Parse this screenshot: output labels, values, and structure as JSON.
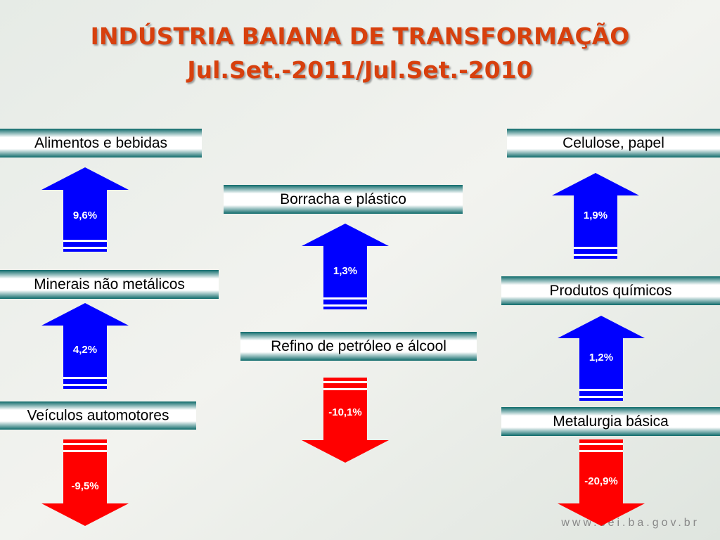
{
  "header": {
    "title": "INDÚSTRIA BAIANA DE TRANSFORMAÇÃO",
    "subtitle": "Jul.Set.-2011/Jul.Set.-2010"
  },
  "items": [
    {
      "label": "Alimentos e bebidas",
      "value": "9,6%"
    },
    {
      "label": "Minerais não metálicos",
      "value": "4,2%"
    },
    {
      "label": "Veículos automotores",
      "value": "-9,5%"
    },
    {
      "label": "Borracha e plástico",
      "value": "1,3%"
    },
    {
      "label": "Refino de petróleo e álcool",
      "value": "-10,1%"
    },
    {
      "label": "Celulose, papel",
      "value": "1,9%"
    },
    {
      "label": "Produtos químicos",
      "value": "1,2%"
    },
    {
      "label": "Metalurgia básica",
      "value": "-20,9%"
    }
  ],
  "footer": "www.sei.ba.gov.br"
}
